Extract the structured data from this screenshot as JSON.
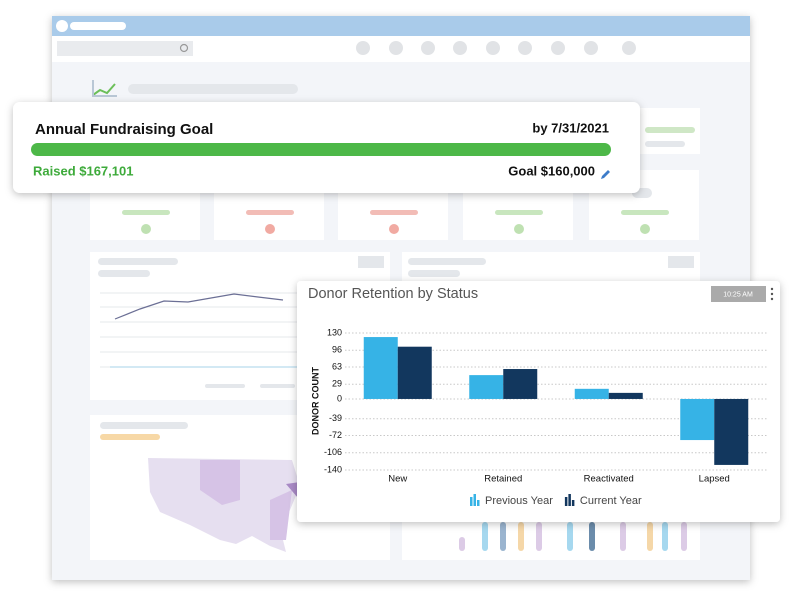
{
  "goal_card": {
    "title": "Annual Fundraising Goal",
    "deadline": "by 7/31/2021",
    "raised": "Raised $167,101",
    "goal": "Goal $160,000"
  },
  "chart_data": {
    "type": "bar",
    "title": "Donor Retention by Status",
    "timestamp": "10:25 AM",
    "y_label": "DONOR COUNT",
    "categories": [
      "New",
      "Retained",
      "Reactivated",
      "Lapsed"
    ],
    "series": [
      {
        "name": "Previous Year",
        "color": "#36b3e6",
        "values": [
          122,
          47,
          20,
          -81
        ]
      },
      {
        "name": "Current Year",
        "color": "#12375e",
        "values": [
          103,
          59,
          12,
          -130
        ]
      }
    ],
    "ylim": [
      -140,
      130
    ],
    "yticks": [
      130,
      96,
      63,
      29,
      0,
      -39,
      -72,
      -106,
      -140
    ],
    "grid": true,
    "legend": "bottom"
  }
}
